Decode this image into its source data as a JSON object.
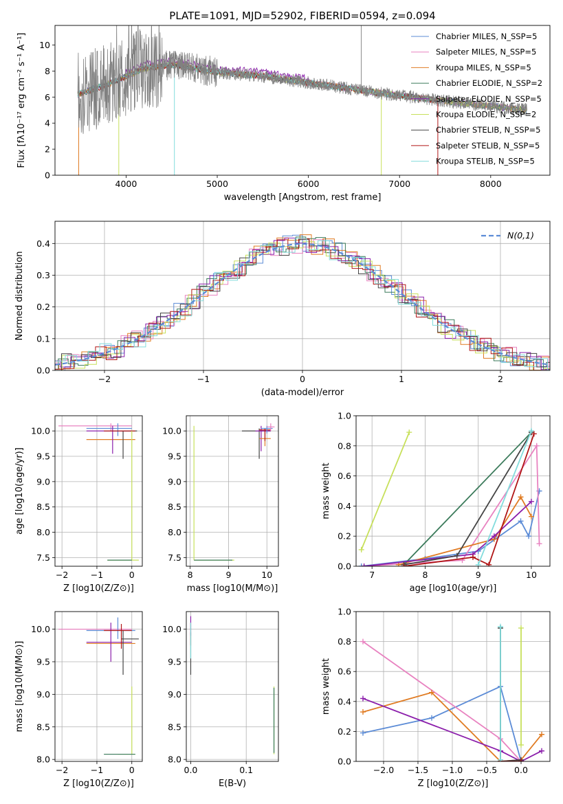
{
  "figure": {
    "title": "PLATE=1091, MJD=52902, FIBERID=0594, z=0.094"
  },
  "colors": {
    "Chabrier MILES": "#5b8bd6",
    "Salpeter MILES": "#e882c0",
    "Kroupa MILES": "#e07b22",
    "Chabrier ELODIE": "#3a7a5a",
    "Salpeter ELODIE": "#8b1eab",
    "Kroupa ELODIE": "#c7e05a",
    "Chabrier STELIB": "#444444",
    "Salpeter STELIB": "#b01515",
    "Kroupa STELIB": "#82dcdc",
    "data": "#808080",
    "normal": "#5b8bd6",
    "grid": "#b0b0b0"
  },
  "chart_data": [
    {
      "id": "spectrum",
      "type": "line",
      "xlabel": "wavelength [Angstrom, rest frame]",
      "ylabel": "Flux [fλ10⁻¹⁷ erg cm⁻² s⁻¹ A⁻¹]",
      "xlim": [
        3220,
        8650
      ],
      "ylim": [
        0,
        11.5
      ],
      "xticks": [
        4000,
        5000,
        6000,
        7000,
        8000
      ],
      "yticks": [
        0,
        2,
        4,
        6,
        8,
        10
      ],
      "grid": false,
      "legend_position": "top-right",
      "legend": [
        "Chabrier MILES, N_SSP=5",
        "Salpeter MILES, N_SSP=5",
        "Kroupa MILES, N_SSP=5",
        "Chabrier ELODIE, N_SSP=2",
        "Salpeter ELODIE, N_SSP=5",
        "Kroupa ELODIE, N_SSP=2",
        "Chabrier STELIB, N_SSP=5",
        "Salpeter STELIB, N_SSP=5",
        "Kroupa STELIB, N_SSP=5"
      ],
      "continuum_x": [
        3470,
        3600,
        3800,
        4000,
        4200,
        4500,
        5000,
        5500,
        6000,
        6500,
        7000,
        7500,
        8000,
        8400
      ],
      "continuum_y": [
        6.2,
        6.5,
        7.0,
        7.6,
        8.2,
        8.5,
        7.9,
        7.6,
        7.1,
        6.6,
        6.1,
        5.7,
        5.3,
        5.0
      ]
    },
    {
      "id": "residual_hist",
      "type": "bar",
      "xlabel": "(data-model)/error",
      "ylabel": "Normed distribution",
      "xlim": [
        -2.5,
        2.5
      ],
      "ylim": [
        0,
        0.47
      ],
      "xticks": [
        -2,
        -1,
        0,
        1,
        2
      ],
      "yticks": [
        0.0,
        0.1,
        0.2,
        0.3,
        0.4
      ],
      "grid": true,
      "legend_position": "top-right",
      "legend": [
        "N(0,1)"
      ]
    },
    {
      "id": "age_vs_Z",
      "type": "scatter",
      "xlabel": "Z [log10(Z/Z⊙)]",
      "ylabel": "age [log10(age/yr)]",
      "xlim": [
        -2.2,
        0.3
      ],
      "ylim": [
        7.33,
        10.3
      ],
      "xticks": [
        -2,
        -1,
        0
      ],
      "yticks": [
        7.5,
        8.0,
        8.5,
        9.0,
        9.5,
        10.0
      ],
      "grid": true
    },
    {
      "id": "age_vs_mass",
      "type": "scatter",
      "xlabel": "mass [log10(M/M⊙)]",
      "ylabel": "",
      "xlim": [
        7.9,
        10.3
      ],
      "ylim": [
        7.33,
        10.3
      ],
      "xticks": [
        8,
        9,
        10
      ],
      "yticks": [
        7.5,
        8.0,
        8.5,
        9.0,
        9.5,
        10.0
      ],
      "grid": true
    },
    {
      "id": "weight_vs_age",
      "type": "line",
      "xlabel": "age [log10(age/yr)]",
      "ylabel": "mass weight",
      "xlim": [
        6.7,
        10.35
      ],
      "ylim": [
        0,
        1.0
      ],
      "xticks": [
        7,
        8,
        9,
        10
      ],
      "yticks": [
        0.0,
        0.2,
        0.4,
        0.6,
        0.8,
        1.0
      ],
      "grid": true,
      "series": [
        {
          "name": "Chabrier MILES",
          "x": [
            6.8,
            8.0,
            9.0,
            9.8,
            9.95,
            10.15
          ],
          "y": [
            0.0,
            0.05,
            0.1,
            0.3,
            0.2,
            0.5
          ]
        },
        {
          "name": "Salpeter MILES",
          "x": [
            6.85,
            8.7,
            10.1,
            10.15
          ],
          "y": [
            0.0,
            0.04,
            0.8,
            0.15
          ]
        },
        {
          "name": "Kroupa MILES",
          "x": [
            7.5,
            9.3,
            9.8,
            10.0
          ],
          "y": [
            0.01,
            0.18,
            0.46,
            0.33
          ]
        },
        {
          "name": "Chabrier ELODIE",
          "x": [
            7.6,
            10.0
          ],
          "y": [
            0.01,
            0.89
          ]
        },
        {
          "name": "Salpeter ELODIE",
          "x": [
            6.85,
            8.9,
            9.3,
            10.0
          ],
          "y": [
            0.0,
            0.08,
            0.2,
            0.43
          ]
        },
        {
          "name": "Kroupa ELODIE",
          "x": [
            6.8,
            7.7
          ],
          "y": [
            0.11,
            0.89
          ]
        },
        {
          "name": "Chabrier STELIB",
          "x": [
            7.6,
            8.6,
            10.0
          ],
          "y": [
            0.01,
            0.07,
            0.89
          ]
        },
        {
          "name": "Salpeter STELIB",
          "x": [
            7.6,
            8.9,
            9.2,
            10.05
          ],
          "y": [
            0.0,
            0.06,
            0.01,
            0.88
          ]
        },
        {
          "name": "Kroupa STELIB",
          "x": [
            9.0,
            10.0
          ],
          "y": [
            0.01,
            0.9
          ]
        }
      ]
    },
    {
      "id": "mass_vs_Z",
      "type": "scatter",
      "xlabel": "Z [log10(Z/Z⊙)]",
      "ylabel": "mass [log10(M/M⊙)]",
      "xlim": [
        -2.2,
        0.3
      ],
      "ylim": [
        7.97,
        10.27
      ],
      "xticks": [
        -2,
        -1,
        0
      ],
      "yticks": [
        8.0,
        8.5,
        9.0,
        9.5,
        10.0
      ],
      "grid": true
    },
    {
      "id": "mass_vs_ebv",
      "type": "scatter",
      "xlabel": "E(B-V)",
      "ylabel": "",
      "xlim": [
        -0.008,
        0.158
      ],
      "ylim": [
        7.97,
        10.27
      ],
      "xticks": [
        0.0,
        0.1
      ],
      "yticks": [
        8.0,
        8.5,
        9.0,
        9.5,
        10.0
      ],
      "grid": true
    },
    {
      "id": "weight_vs_Z",
      "type": "line",
      "xlabel": "Z [log10(Z/Z⊙)]",
      "ylabel": "mass weight",
      "xlim": [
        -2.4,
        0.42
      ],
      "ylim": [
        0,
        1.0
      ],
      "xticks": [
        -2.0,
        -1.5,
        -1.0,
        -0.5,
        0.0
      ],
      "yticks": [
        0.0,
        0.2,
        0.4,
        0.6,
        0.8,
        1.0
      ],
      "grid": true,
      "series": [
        {
          "name": "Chabrier MILES",
          "x": [
            -2.3,
            -1.3,
            -0.3,
            0.0
          ],
          "y": [
            0.19,
            0.29,
            0.5,
            0.0
          ]
        },
        {
          "name": "Salpeter MILES",
          "x": [
            -2.3,
            -0.3,
            0.0
          ],
          "y": [
            0.8,
            0.15,
            0.0
          ]
        },
        {
          "name": "Kroupa MILES",
          "x": [
            -2.3,
            -1.3,
            -0.3,
            0.0,
            0.3
          ],
          "y": [
            0.33,
            0.46,
            0.0,
            0.01,
            0.18
          ]
        },
        {
          "name": "Chabrier ELODIE",
          "x": [
            -0.3,
            -0.3
          ],
          "y": [
            0.01,
            0.89
          ]
        },
        {
          "name": "Salpeter ELODIE",
          "x": [
            -2.3,
            -0.3,
            0.0,
            0.3
          ],
          "y": [
            0.42,
            0.07,
            0.0,
            0.07
          ]
        },
        {
          "name": "Kroupa ELODIE",
          "x": [
            0.0,
            0.0
          ],
          "y": [
            0.11,
            0.89
          ]
        },
        {
          "name": "Chabrier STELIB",
          "x": [
            -0.3,
            -0.3,
            0.0
          ],
          "y": [
            0.89,
            0.0,
            0.01
          ]
        },
        {
          "name": "Salpeter STELIB",
          "x": [
            -0.3,
            0.0
          ],
          "y": [
            0.0,
            0.0
          ]
        },
        {
          "name": "Kroupa STELIB",
          "x": [
            -0.3,
            -0.3
          ],
          "y": [
            0.01,
            0.9
          ]
        }
      ]
    }
  ]
}
